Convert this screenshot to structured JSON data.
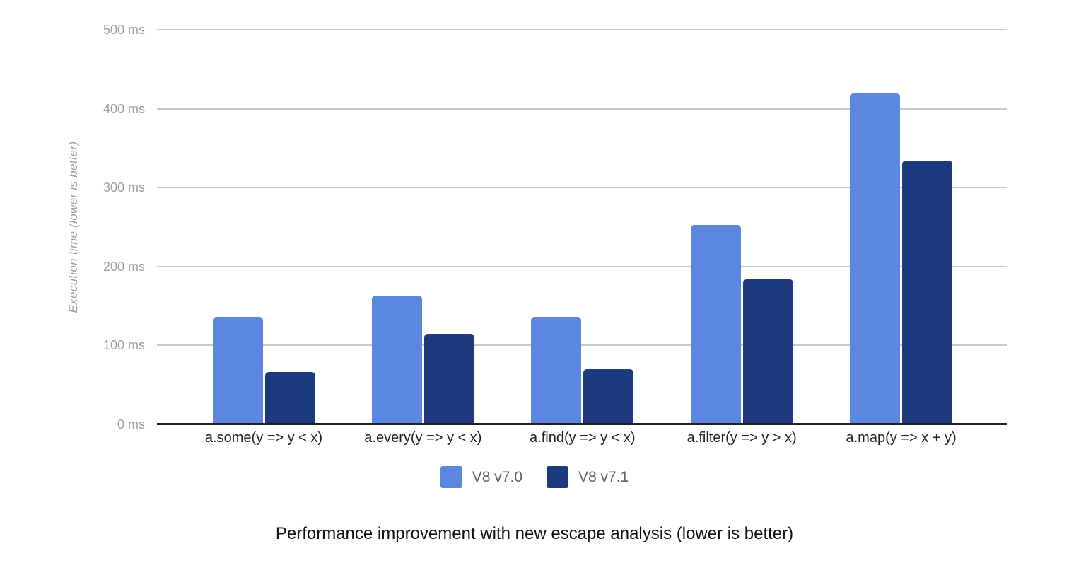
{
  "chart_data": {
    "type": "bar",
    "title": "Performance improvement with new escape analysis (lower is better)",
    "ylabel": "Execution time (lower is better)",
    "unit": "ms",
    "ylim": [
      0,
      500
    ],
    "grid": true,
    "legend_position": "bottom",
    "yticks": [
      {
        "value": 0,
        "label": "0 ms"
      },
      {
        "value": 100,
        "label": "100 ms"
      },
      {
        "value": 200,
        "label": "200 ms"
      },
      {
        "value": 300,
        "label": "300 ms"
      },
      {
        "value": 400,
        "label": "400 ms"
      },
      {
        "value": 500,
        "label": "500 ms"
      }
    ],
    "categories": [
      "a.some(y => y < x)",
      "a.every(y => y < x)",
      "a.find(y => y < x)",
      "a.filter(y => y > x)",
      "a.map(y => x + y)"
    ],
    "series": [
      {
        "name": "V8 v7.0",
        "color": "#5b87e0",
        "values": [
          136,
          163,
          136,
          253,
          419
        ]
      },
      {
        "name": "V8 v7.1",
        "color": "#1c3a7d",
        "values": [
          66,
          115,
          70,
          184,
          334
        ]
      }
    ],
    "colors": {
      "background": "#ffffff",
      "gridline": "#c9c9c9",
      "baseline": "#1f1f1f",
      "tick_text": "#9e9e9e",
      "axis_title_text": "#9e9e9e",
      "category_text": "#202124",
      "legend_text": "#5f6368",
      "title_text": "#111111"
    }
  }
}
